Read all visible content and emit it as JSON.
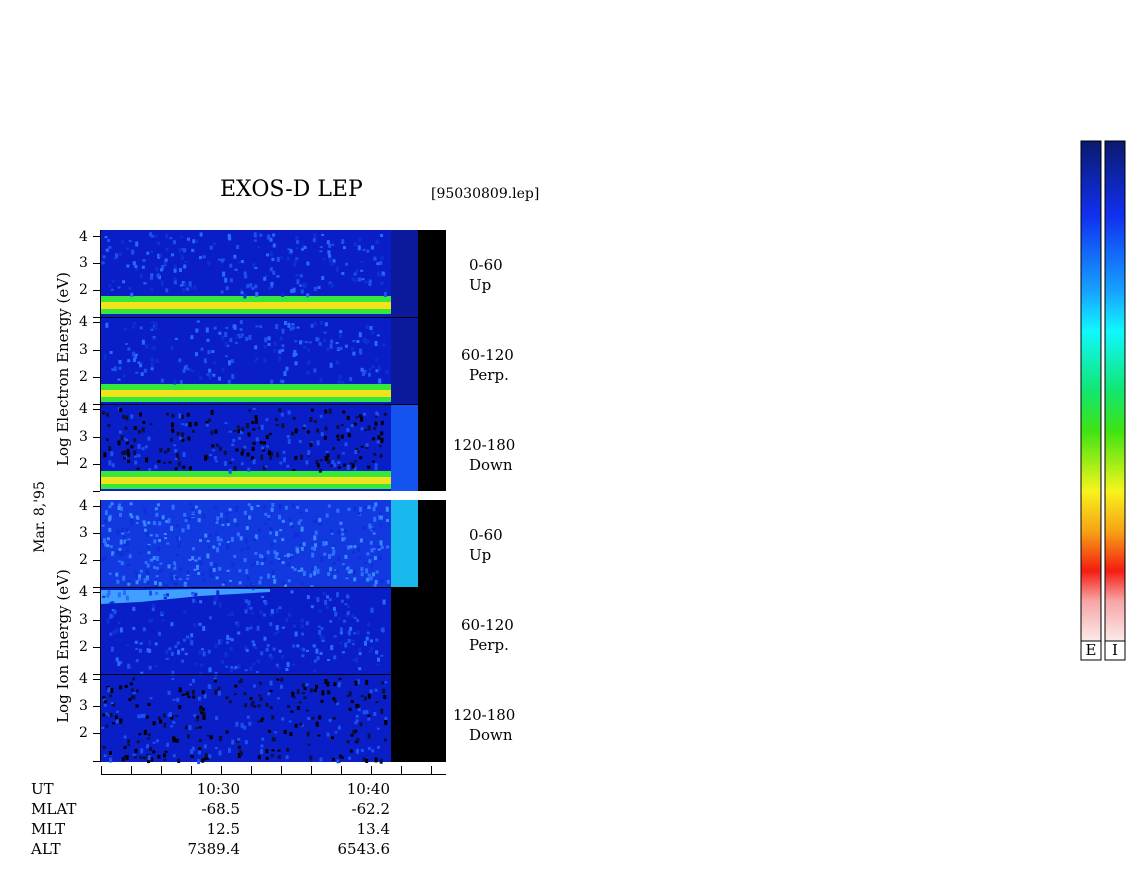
{
  "title": "EXOS-D LEP",
  "file_label": "[95030809.lep]",
  "date_label": "Mar. 8,'95",
  "colors": {
    "background_blue": "#0a1ec8",
    "dark_blue": "#0b1a9c",
    "band_green": "#37e83a",
    "band_yellow": "#f2e21c",
    "cyan_block": "#19b9ee",
    "mid_blue_block": "#1553f0",
    "black": "#000000"
  },
  "chart_data": {
    "type": "heatmap",
    "title": "EXOS-D LEP",
    "groups": [
      {
        "ylabel": "Log  Electron  Energy (eV)",
        "panels": [
          {
            "pitch_angle": "0-60",
            "direction": "Up",
            "yticks": [
              "4",
              "3",
              "2"
            ],
            "band_log_energy": 1.3
          },
          {
            "pitch_angle": "60-120",
            "direction": "Perp.",
            "yticks": [
              "4",
              "3",
              "2"
            ],
            "band_log_energy": 1.3
          },
          {
            "pitch_angle": "120-180",
            "direction": "Down",
            "yticks": [
              "4",
              "3",
              "2"
            ],
            "band_log_energy": 1.3
          }
        ]
      },
      {
        "ylabel": "Log  Ion  Energy (eV)",
        "panels": [
          {
            "pitch_angle": "0-60",
            "direction": "Up",
            "yticks": [
              "4",
              "3",
              "2"
            ]
          },
          {
            "pitch_angle": "60-120",
            "direction": "Perp.",
            "yticks": [
              "4",
              "3",
              "2"
            ]
          },
          {
            "pitch_angle": "120-180",
            "direction": "Down",
            "yticks": [
              "4",
              "3",
              "2"
            ]
          }
        ]
      }
    ],
    "ylim": [
      1,
      4.2
    ],
    "x_axis": {
      "rows": [
        {
          "label": "UT",
          "values": [
            "10:30",
            "10:40"
          ]
        },
        {
          "label": "MLAT",
          "values": [
            "-68.5",
            "-62.2"
          ]
        },
        {
          "label": "MLT",
          "values": [
            "12.5",
            "13.4"
          ]
        },
        {
          "label": "ALT",
          "values": [
            "7389.4",
            "6543.6"
          ]
        }
      ]
    },
    "colorbars": [
      {
        "label": "E"
      },
      {
        "label": "I"
      }
    ]
  }
}
